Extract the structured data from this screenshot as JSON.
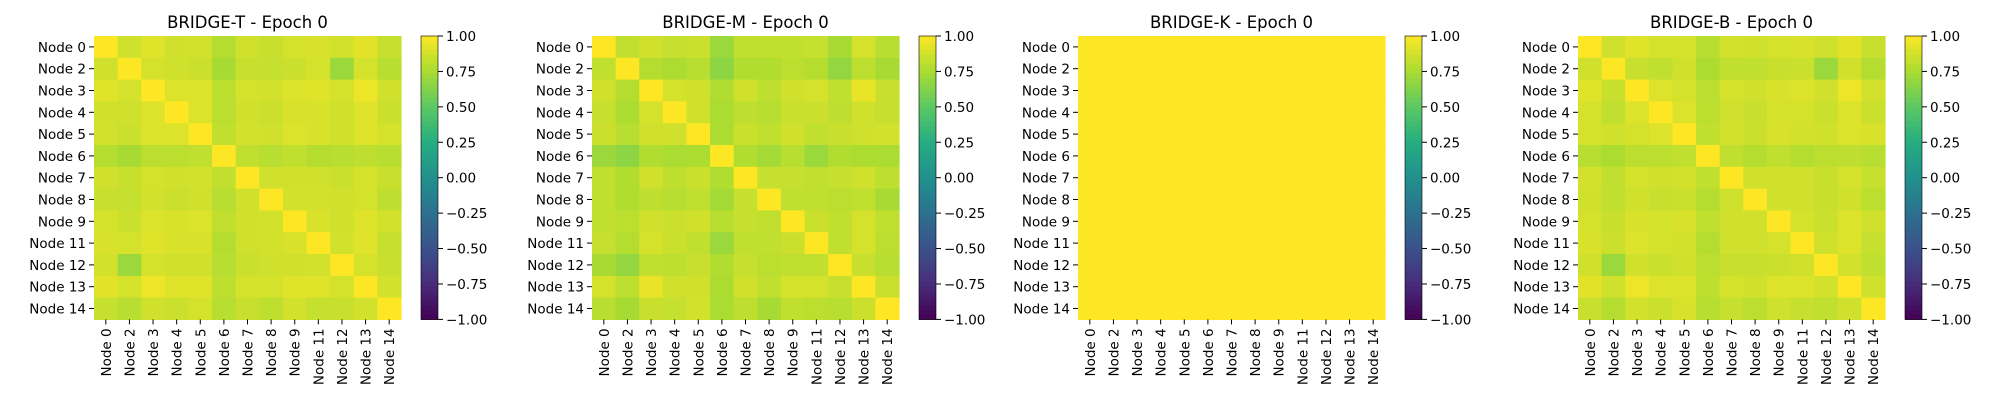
{
  "chart_data": [
    {
      "type": "heatmap",
      "title": "BRIDGE-T - Epoch 0",
      "labels": [
        "Node 0",
        "Node 2",
        "Node 3",
        "Node 4",
        "Node 5",
        "Node 6",
        "Node 7",
        "Node 8",
        "Node 9",
        "Node 11",
        "Node 12",
        "Node 13",
        "Node 14"
      ],
      "values": [
        [
          1.0,
          0.86,
          0.91,
          0.86,
          0.87,
          0.78,
          0.86,
          0.84,
          0.88,
          0.89,
          0.87,
          0.92,
          0.83
        ],
        [
          0.86,
          1.0,
          0.88,
          0.86,
          0.85,
          0.74,
          0.84,
          0.83,
          0.85,
          0.88,
          0.7,
          0.88,
          0.79
        ],
        [
          0.91,
          0.88,
          1.0,
          0.9,
          0.9,
          0.8,
          0.88,
          0.87,
          0.9,
          0.91,
          0.88,
          0.95,
          0.86
        ],
        [
          0.86,
          0.86,
          0.9,
          1.0,
          0.9,
          0.8,
          0.86,
          0.85,
          0.89,
          0.89,
          0.86,
          0.91,
          0.85
        ],
        [
          0.87,
          0.85,
          0.9,
          0.9,
          1.0,
          0.82,
          0.87,
          0.86,
          0.9,
          0.89,
          0.86,
          0.91,
          0.88
        ],
        [
          0.78,
          0.74,
          0.8,
          0.8,
          0.82,
          1.0,
          0.82,
          0.79,
          0.82,
          0.78,
          0.79,
          0.81,
          0.79
        ],
        [
          0.86,
          0.84,
          0.88,
          0.86,
          0.87,
          0.82,
          1.0,
          0.86,
          0.86,
          0.86,
          0.85,
          0.88,
          0.84
        ],
        [
          0.84,
          0.83,
          0.87,
          0.85,
          0.86,
          0.79,
          0.86,
          1.0,
          0.87,
          0.87,
          0.86,
          0.88,
          0.81
        ],
        [
          0.88,
          0.85,
          0.9,
          0.89,
          0.9,
          0.82,
          0.86,
          0.87,
          1.0,
          0.89,
          0.86,
          0.91,
          0.87
        ],
        [
          0.89,
          0.88,
          0.91,
          0.89,
          0.89,
          0.78,
          0.86,
          0.87,
          0.89,
          1.0,
          0.87,
          0.91,
          0.83
        ],
        [
          0.87,
          0.7,
          0.88,
          0.86,
          0.86,
          0.79,
          0.85,
          0.86,
          0.86,
          0.87,
          1.0,
          0.88,
          0.84
        ],
        [
          0.92,
          0.88,
          0.95,
          0.91,
          0.91,
          0.81,
          0.88,
          0.88,
          0.91,
          0.91,
          0.88,
          1.0,
          0.87
        ],
        [
          0.83,
          0.79,
          0.86,
          0.85,
          0.88,
          0.79,
          0.84,
          0.81,
          0.87,
          0.83,
          0.84,
          0.87,
          1.0
        ]
      ],
      "vmin": -1.0,
      "vmax": 1.0,
      "colormap": "viridis",
      "colorbar_ticks": [
        "1.00",
        "0.75",
        "0.50",
        "0.25",
        "0.00",
        "−0.25",
        "−0.50",
        "−0.75",
        "−1.00"
      ]
    },
    {
      "type": "heatmap",
      "title": "BRIDGE-M - Epoch 0",
      "labels": [
        "Node 0",
        "Node 2",
        "Node 3",
        "Node 4",
        "Node 5",
        "Node 6",
        "Node 7",
        "Node 8",
        "Node 9",
        "Node 11",
        "Node 12",
        "Node 13",
        "Node 14"
      ],
      "values": [
        [
          1.0,
          0.82,
          0.86,
          0.83,
          0.85,
          0.7,
          0.82,
          0.82,
          0.82,
          0.83,
          0.74,
          0.88,
          0.79
        ],
        [
          0.82,
          1.0,
          0.78,
          0.76,
          0.79,
          0.66,
          0.77,
          0.77,
          0.8,
          0.78,
          0.68,
          0.8,
          0.74
        ],
        [
          0.86,
          0.78,
          1.0,
          0.88,
          0.86,
          0.77,
          0.86,
          0.81,
          0.86,
          0.88,
          0.82,
          0.94,
          0.84
        ],
        [
          0.83,
          0.76,
          0.88,
          1.0,
          0.86,
          0.75,
          0.81,
          0.79,
          0.85,
          0.85,
          0.81,
          0.86,
          0.83
        ],
        [
          0.85,
          0.79,
          0.86,
          0.86,
          1.0,
          0.76,
          0.85,
          0.82,
          0.86,
          0.82,
          0.84,
          0.86,
          0.87
        ],
        [
          0.7,
          0.66,
          0.77,
          0.75,
          0.76,
          1.0,
          0.77,
          0.73,
          0.79,
          0.7,
          0.77,
          0.76,
          0.75
        ],
        [
          0.82,
          0.77,
          0.86,
          0.81,
          0.85,
          0.77,
          1.0,
          0.83,
          0.83,
          0.82,
          0.83,
          0.86,
          0.81
        ],
        [
          0.82,
          0.77,
          0.81,
          0.79,
          0.82,
          0.73,
          0.83,
          1.0,
          0.82,
          0.82,
          0.8,
          0.82,
          0.74
        ],
        [
          0.82,
          0.8,
          0.86,
          0.85,
          0.86,
          0.79,
          0.83,
          0.82,
          1.0,
          0.85,
          0.82,
          0.88,
          0.82
        ],
        [
          0.83,
          0.78,
          0.88,
          0.85,
          0.82,
          0.7,
          0.82,
          0.82,
          0.85,
          1.0,
          0.82,
          0.88,
          0.8
        ],
        [
          0.74,
          0.68,
          0.82,
          0.81,
          0.84,
          0.77,
          0.83,
          0.8,
          0.82,
          0.82,
          1.0,
          0.84,
          0.79
        ],
        [
          0.88,
          0.8,
          0.94,
          0.86,
          0.86,
          0.76,
          0.86,
          0.82,
          0.88,
          0.88,
          0.84,
          1.0,
          0.85
        ],
        [
          0.79,
          0.74,
          0.84,
          0.83,
          0.87,
          0.75,
          0.81,
          0.74,
          0.82,
          0.8,
          0.79,
          0.85,
          1.0
        ]
      ],
      "vmin": -1.0,
      "vmax": 1.0,
      "colormap": "viridis",
      "colorbar_ticks": [
        "1.00",
        "0.75",
        "0.50",
        "0.25",
        "0.00",
        "−0.25",
        "−0.50",
        "−0.75",
        "−1.00"
      ]
    },
    {
      "type": "heatmap",
      "title": "BRIDGE-K - Epoch 0",
      "labels": [
        "Node 0",
        "Node 2",
        "Node 3",
        "Node 4",
        "Node 5",
        "Node 6",
        "Node 7",
        "Node 8",
        "Node 9",
        "Node 11",
        "Node 12",
        "Node 13",
        "Node 14"
      ],
      "uniform_value": 1.0,
      "vmin": -1.0,
      "vmax": 1.0,
      "colormap": "viridis",
      "colorbar_ticks": [
        "1.00",
        "0.75",
        "0.50",
        "0.25",
        "0.00",
        "−0.25",
        "−0.50",
        "−0.75",
        "−1.00"
      ]
    },
    {
      "type": "heatmap",
      "title": "BRIDGE-B - Epoch 0",
      "labels": [
        "Node 0",
        "Node 2",
        "Node 3",
        "Node 4",
        "Node 5",
        "Node 6",
        "Node 7",
        "Node 8",
        "Node 9",
        "Node 11",
        "Node 12",
        "Node 13",
        "Node 14"
      ],
      "values": [
        [
          1.0,
          0.86,
          0.91,
          0.88,
          0.88,
          0.79,
          0.87,
          0.86,
          0.88,
          0.89,
          0.86,
          0.92,
          0.84
        ],
        [
          0.86,
          1.0,
          0.84,
          0.82,
          0.86,
          0.76,
          0.82,
          0.82,
          0.84,
          0.85,
          0.7,
          0.86,
          0.78
        ],
        [
          0.91,
          0.84,
          1.0,
          0.9,
          0.88,
          0.8,
          0.88,
          0.86,
          0.89,
          0.9,
          0.86,
          0.95,
          0.87
        ],
        [
          0.88,
          0.82,
          0.9,
          1.0,
          0.9,
          0.8,
          0.86,
          0.84,
          0.88,
          0.88,
          0.85,
          0.9,
          0.85
        ],
        [
          0.88,
          0.86,
          0.88,
          0.9,
          1.0,
          0.82,
          0.87,
          0.85,
          0.89,
          0.87,
          0.86,
          0.9,
          0.89
        ],
        [
          0.79,
          0.76,
          0.8,
          0.8,
          0.82,
          1.0,
          0.82,
          0.78,
          0.82,
          0.78,
          0.8,
          0.81,
          0.79
        ],
        [
          0.87,
          0.82,
          0.88,
          0.86,
          0.87,
          0.82,
          1.0,
          0.86,
          0.86,
          0.86,
          0.84,
          0.88,
          0.83
        ],
        [
          0.86,
          0.82,
          0.86,
          0.84,
          0.85,
          0.78,
          0.86,
          1.0,
          0.86,
          0.86,
          0.84,
          0.86,
          0.8
        ],
        [
          0.88,
          0.84,
          0.89,
          0.88,
          0.89,
          0.82,
          0.86,
          0.86,
          1.0,
          0.88,
          0.85,
          0.9,
          0.86
        ],
        [
          0.89,
          0.85,
          0.9,
          0.88,
          0.87,
          0.78,
          0.86,
          0.86,
          0.88,
          1.0,
          0.86,
          0.9,
          0.83
        ],
        [
          0.86,
          0.7,
          0.86,
          0.85,
          0.86,
          0.8,
          0.84,
          0.84,
          0.85,
          0.86,
          1.0,
          0.87,
          0.82
        ],
        [
          0.92,
          0.86,
          0.95,
          0.9,
          0.9,
          0.81,
          0.88,
          0.86,
          0.9,
          0.9,
          0.87,
          1.0,
          0.86
        ],
        [
          0.84,
          0.78,
          0.87,
          0.85,
          0.89,
          0.79,
          0.83,
          0.8,
          0.86,
          0.83,
          0.82,
          0.86,
          1.0
        ]
      ],
      "vmin": -1.0,
      "vmax": 1.0,
      "colormap": "viridis",
      "colorbar_ticks": [
        "1.00",
        "0.75",
        "0.50",
        "0.25",
        "0.00",
        "−0.25",
        "−0.50",
        "−0.75",
        "−1.00"
      ]
    }
  ]
}
